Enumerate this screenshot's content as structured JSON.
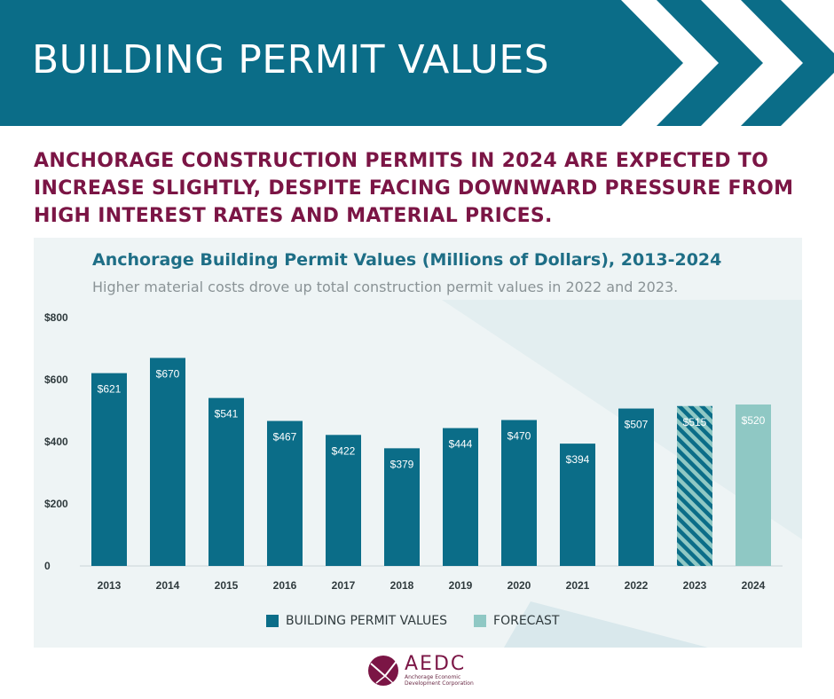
{
  "banner": {
    "title": "BUILDING PERMIT VALUES"
  },
  "headline": "ANCHORAGE CONSTRUCTION PERMITS IN 2024 ARE EXPECTED TO INCREASE SLIGHTLY, DESPITE FACING DOWNWARD PRESSURE FROM HIGH INTEREST RATES AND MATERIAL PRICES.",
  "colors": {
    "banner": "#0b6d88",
    "headline": "#7b1545",
    "bar": "#0b6d88",
    "forecast": "#8fc8c4",
    "panel": "#eef4f5"
  },
  "chart_data": {
    "type": "bar",
    "title": "Anchorage Building Permit Values (Millions of Dollars), 2013-2024",
    "subtitle": "Higher material costs drove up total construction permit values in 2022 and 2023.",
    "categories": [
      "2013",
      "2014",
      "2015",
      "2016",
      "2017",
      "2018",
      "2019",
      "2020",
      "2021",
      "2022",
      "2023",
      "2024"
    ],
    "values": [
      621,
      670,
      541,
      467,
      422,
      379,
      444,
      470,
      394,
      507,
      515,
      520
    ],
    "value_labels": [
      "$621",
      "$670",
      "$541",
      "$467",
      "$422",
      "$379",
      "$444",
      "$470",
      "$394",
      "$507",
      "$515",
      "$520"
    ],
    "bar_styles": [
      "solid",
      "solid",
      "solid",
      "solid",
      "solid",
      "solid",
      "solid",
      "solid",
      "solid",
      "solid",
      "hatched",
      "forecast"
    ],
    "y_ticks": [
      "0",
      "$200",
      "$400",
      "$600",
      "$800"
    ],
    "y_tick_values": [
      0,
      200,
      400,
      600,
      800
    ],
    "ylim": [
      0,
      800
    ],
    "xlabel": "",
    "ylabel": "",
    "grid": false,
    "legend_position": "bottom",
    "legend": [
      {
        "name": "BUILDING PERMIT VALUES",
        "color": "#0b6d88"
      },
      {
        "name": "FORECAST",
        "color": "#8fc8c4"
      }
    ]
  },
  "footer": {
    "logo_name": "AEDC",
    "logo_sub_1": "Anchorage Economic",
    "logo_sub_2": "Development Corporation"
  }
}
